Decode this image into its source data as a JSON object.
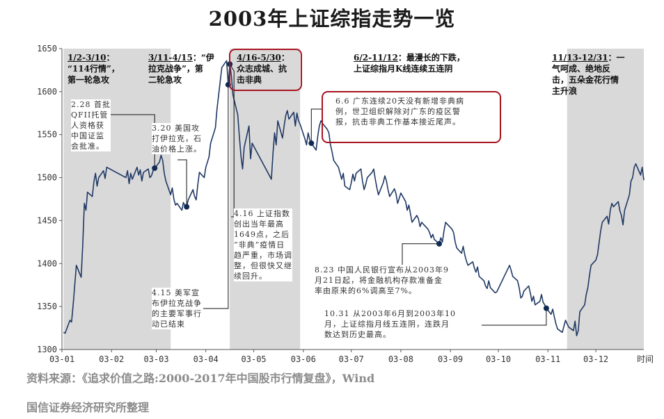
{
  "title": "2003年上证综指走势一览",
  "source": "资料来源：《追求价值之路:2000-2017年中国股市行情复盘》，Wind",
  "organizer": "国信证券经济研究所整理",
  "colors": {
    "line": "#1f3864",
    "shade": "#d9d9d9",
    "highlight": "#a8131f",
    "marker": "#0f2a52",
    "note_text": "#333333"
  },
  "periods": [
    {
      "id": "p1",
      "range": "1/2-3/10",
      "text": "1/2-3/10：\n“114行情”，\n第一轮急攻"
    },
    {
      "id": "p2",
      "range": "3/11-4/15",
      "text": "3/11-4/15：“伊\n拉克战争”，第\n二轮急攻"
    },
    {
      "id": "p3",
      "range": "4/16-5/30",
      "text": "4/16-5/30：\n众志成城、抗\n击非典"
    },
    {
      "id": "p4",
      "range": "6/2-11/12",
      "text": "6/2-11/12：最漫长的下跌，\n上证综指月K线连续五连阴"
    },
    {
      "id": "p5",
      "range": "11/13-12/31",
      "text": "11/13-12/31：一\n气呵成、绝地反\n击，五朵金花行情\n主升浪"
    }
  ],
  "annotations": [
    {
      "id": "a1",
      "text": "2.28 首批\nQFII托管\n人资格获\n中国证监\n会批准。"
    },
    {
      "id": "a2",
      "text": "3.20 美国攻\n打伊拉克，石\n油价格上涨。"
    },
    {
      "id": "a3",
      "text": "4.16 上证指数\n创出当年最高\n1649点，之后\n“非典”疫情日\n趋严重，市场调\n整，但很快又继\n续回升。"
    },
    {
      "id": "a4",
      "text": "4.15 美军宣\n布伊拉克战争\n的主要军事行\n动已结束"
    },
    {
      "id": "a5",
      "text": "6.6 广东连续20天没有新增非典病\n例，世卫组织解除对广东的疫区警\n报，抗击非典工作基本接近尾声。"
    },
    {
      "id": "a6",
      "text": "8.23 中国人民银行宣布从2003年9\n月21日起，将金融机构存款准备金\n率由原来的6%调高至7%。"
    },
    {
      "id": "a7",
      "text": "10.31 从2003年6月到2003年10\n月，上证综指月线五连阴，连跌月\n数达到历史最高。"
    }
  ],
  "chart_data": {
    "type": "line",
    "title": "2003年上证综指走势一览",
    "xlabel": "时间",
    "ylabel": "",
    "ylim": [
      1300,
      1650
    ],
    "yticks": [
      1300,
      1350,
      1400,
      1450,
      1500,
      1550,
      1600,
      1650
    ],
    "xticks": [
      "03-01",
      "03-02",
      "03-03",
      "03-04",
      "03-05",
      "03-06",
      "03-07",
      "03-08",
      "03-09",
      "03-10",
      "03-11",
      "03-12"
    ],
    "grid": false,
    "legend": "none",
    "shaded_periods": [
      [
        "2003-01-02",
        "2003-03-10"
      ],
      [
        "2003-04-16",
        "2003-05-30"
      ],
      [
        "2003-11-13",
        "2003-12-31"
      ]
    ],
    "series": [
      {
        "points": [
          [
            "2003-01-02",
            1320
          ],
          [
            "2003-01-03",
            1319
          ],
          [
            "2003-01-06",
            1334
          ],
          [
            "2003-01-07",
            1332
          ],
          [
            "2003-01-08",
            1352
          ],
          [
            "2003-01-09",
            1375
          ],
          [
            "2003-01-10",
            1398
          ],
          [
            "2003-01-13",
            1384
          ],
          [
            "2003-01-14",
            1422
          ],
          [
            "2003-01-15",
            1470
          ],
          [
            "2003-01-16",
            1462
          ],
          [
            "2003-01-17",
            1483
          ],
          [
            "2003-01-20",
            1478
          ],
          [
            "2003-01-21",
            1495
          ],
          [
            "2003-01-22",
            1505
          ],
          [
            "2003-01-23",
            1490
          ],
          [
            "2003-01-24",
            1500
          ],
          [
            "2003-01-27",
            1508
          ],
          [
            "2003-01-28",
            1499
          ],
          [
            "2003-01-29",
            1512
          ],
          [
            "2003-02-10",
            1500
          ],
          [
            "2003-02-11",
            1508
          ],
          [
            "2003-02-12",
            1493
          ],
          [
            "2003-02-13",
            1505
          ],
          [
            "2003-02-14",
            1498
          ],
          [
            "2003-02-17",
            1512
          ],
          [
            "2003-02-18",
            1503
          ],
          [
            "2003-02-19",
            1509
          ],
          [
            "2003-02-20",
            1496
          ],
          [
            "2003-02-21",
            1506
          ],
          [
            "2003-02-24",
            1510
          ],
          [
            "2003-02-25",
            1500
          ],
          [
            "2003-02-26",
            1502
          ],
          [
            "2003-02-27",
            1508
          ],
          [
            "2003-02-28",
            1511
          ],
          [
            "2003-03-03",
            1518
          ],
          [
            "2003-03-04",
            1526
          ],
          [
            "2003-03-05",
            1520
          ],
          [
            "2003-03-06",
            1505
          ],
          [
            "2003-03-07",
            1496
          ],
          [
            "2003-03-10",
            1480
          ],
          [
            "2003-03-11",
            1488
          ],
          [
            "2003-03-12",
            1475
          ],
          [
            "2003-03-13",
            1468
          ],
          [
            "2003-03-14",
            1470
          ],
          [
            "2003-03-17",
            1462
          ],
          [
            "2003-03-18",
            1471
          ],
          [
            "2003-03-19",
            1467
          ],
          [
            "2003-03-20",
            1466
          ],
          [
            "2003-03-21",
            1474
          ],
          [
            "2003-03-24",
            1486
          ],
          [
            "2003-03-25",
            1478
          ],
          [
            "2003-03-26",
            1474
          ],
          [
            "2003-03-27",
            1492
          ],
          [
            "2003-03-28",
            1506
          ],
          [
            "2003-03-31",
            1500
          ],
          [
            "2003-04-01",
            1512
          ],
          [
            "2003-04-02",
            1518
          ],
          [
            "2003-04-03",
            1524
          ],
          [
            "2003-04-04",
            1540
          ],
          [
            "2003-04-07",
            1558
          ],
          [
            "2003-04-08",
            1580
          ],
          [
            "2003-04-09",
            1596
          ],
          [
            "2003-04-10",
            1612
          ],
          [
            "2003-04-11",
            1628
          ],
          [
            "2003-04-14",
            1636
          ],
          [
            "2003-04-15",
            1608
          ],
          [
            "2003-04-16",
            1632
          ],
          [
            "2003-04-17",
            1618
          ],
          [
            "2003-04-18",
            1596
          ],
          [
            "2003-04-21",
            1573
          ],
          [
            "2003-04-22",
            1548
          ],
          [
            "2003-04-23",
            1525
          ],
          [
            "2003-04-24",
            1510
          ],
          [
            "2003-04-25",
            1535
          ],
          [
            "2003-04-28",
            1560
          ],
          [
            "2003-04-29",
            1522
          ],
          [
            "2003-04-30",
            1540
          ],
          [
            "2003-05-12",
            1498
          ],
          [
            "2003-05-13",
            1528
          ],
          [
            "2003-05-14",
            1552
          ],
          [
            "2003-05-15",
            1538
          ],
          [
            "2003-05-16",
            1566
          ],
          [
            "2003-05-19",
            1546
          ],
          [
            "2003-05-20",
            1560
          ],
          [
            "2003-05-21",
            1572
          ],
          [
            "2003-05-22",
            1578
          ],
          [
            "2003-05-23",
            1568
          ],
          [
            "2003-05-26",
            1576
          ],
          [
            "2003-05-27",
            1560
          ],
          [
            "2003-05-28",
            1575
          ],
          [
            "2003-05-29",
            1566
          ],
          [
            "2003-05-30",
            1562
          ],
          [
            "2003-06-02",
            1545
          ],
          [
            "2003-06-03",
            1538
          ],
          [
            "2003-06-04",
            1552
          ],
          [
            "2003-06-05",
            1544
          ],
          [
            "2003-06-06",
            1540
          ],
          [
            "2003-06-09",
            1532
          ],
          [
            "2003-06-10",
            1548
          ],
          [
            "2003-06-11",
            1560
          ],
          [
            "2003-06-12",
            1566
          ],
          [
            "2003-06-13",
            1563
          ],
          [
            "2003-06-16",
            1556
          ],
          [
            "2003-06-17",
            1552
          ],
          [
            "2003-06-18",
            1538
          ],
          [
            "2003-06-19",
            1530
          ],
          [
            "2003-06-20",
            1520
          ],
          [
            "2003-06-23",
            1512
          ],
          [
            "2003-06-24",
            1505
          ],
          [
            "2003-06-25",
            1498
          ],
          [
            "2003-06-26",
            1505
          ],
          [
            "2003-06-27",
            1490
          ],
          [
            "2003-06-30",
            1486
          ],
          [
            "2003-07-01",
            1494
          ],
          [
            "2003-07-02",
            1504
          ],
          [
            "2003-07-03",
            1496
          ],
          [
            "2003-07-04",
            1505
          ],
          [
            "2003-07-07",
            1510
          ],
          [
            "2003-07-08",
            1496
          ],
          [
            "2003-07-09",
            1486
          ],
          [
            "2003-07-10",
            1492
          ],
          [
            "2003-07-11",
            1500
          ],
          [
            "2003-07-14",
            1506
          ],
          [
            "2003-07-15",
            1510
          ],
          [
            "2003-07-16",
            1498
          ],
          [
            "2003-07-17",
            1488
          ],
          [
            "2003-07-18",
            1480
          ],
          [
            "2003-07-21",
            1494
          ],
          [
            "2003-07-22",
            1502
          ],
          [
            "2003-07-23",
            1496
          ],
          [
            "2003-07-24",
            1486
          ],
          [
            "2003-07-25",
            1478
          ],
          [
            "2003-07-28",
            1487
          ],
          [
            "2003-07-29",
            1481
          ],
          [
            "2003-07-30",
            1470
          ],
          [
            "2003-07-31",
            1476
          ],
          [
            "2003-08-01",
            1482
          ],
          [
            "2003-08-04",
            1472
          ],
          [
            "2003-08-05",
            1462
          ],
          [
            "2003-08-06",
            1468
          ],
          [
            "2003-08-07",
            1458
          ],
          [
            "2003-08-08",
            1448
          ],
          [
            "2003-08-11",
            1456
          ],
          [
            "2003-08-12",
            1452
          ],
          [
            "2003-08-13",
            1443
          ],
          [
            "2003-08-14",
            1448
          ],
          [
            "2003-08-15",
            1446
          ],
          [
            "2003-08-18",
            1440
          ],
          [
            "2003-08-19",
            1436
          ],
          [
            "2003-08-20",
            1430
          ],
          [
            "2003-08-21",
            1434
          ],
          [
            "2003-08-22",
            1428
          ],
          [
            "2003-08-25",
            1423
          ],
          [
            "2003-08-26",
            1430
          ],
          [
            "2003-08-27",
            1425
          ],
          [
            "2003-08-28",
            1438
          ],
          [
            "2003-08-29",
            1448
          ],
          [
            "2003-09-01",
            1442
          ],
          [
            "2003-09-02",
            1440
          ],
          [
            "2003-09-03",
            1436
          ],
          [
            "2003-09-04",
            1425
          ],
          [
            "2003-09-05",
            1418
          ],
          [
            "2003-09-08",
            1412
          ],
          [
            "2003-09-09",
            1420
          ],
          [
            "2003-09-10",
            1410
          ],
          [
            "2003-09-11",
            1403
          ],
          [
            "2003-09-12",
            1398
          ],
          [
            "2003-09-15",
            1402
          ],
          [
            "2003-09-16",
            1395
          ],
          [
            "2003-09-17",
            1390
          ],
          [
            "2003-09-18",
            1396
          ],
          [
            "2003-09-19",
            1385
          ],
          [
            "2003-09-22",
            1380
          ],
          [
            "2003-09-23",
            1374
          ],
          [
            "2003-09-24",
            1371
          ],
          [
            "2003-09-25",
            1380
          ],
          [
            "2003-09-26",
            1372
          ],
          [
            "2003-09-29",
            1366
          ],
          [
            "2003-09-30",
            1367
          ],
          [
            "2003-10-08",
            1398
          ],
          [
            "2003-10-09",
            1392
          ],
          [
            "2003-10-10",
            1385
          ],
          [
            "2003-10-13",
            1380
          ],
          [
            "2003-10-14",
            1372
          ],
          [
            "2003-10-15",
            1360
          ],
          [
            "2003-10-16",
            1362
          ],
          [
            "2003-10-17",
            1368
          ],
          [
            "2003-10-20",
            1374
          ],
          [
            "2003-10-21",
            1366
          ],
          [
            "2003-10-22",
            1356
          ],
          [
            "2003-10-23",
            1362
          ],
          [
            "2003-10-24",
            1352
          ],
          [
            "2003-10-27",
            1356
          ],
          [
            "2003-10-28",
            1364
          ],
          [
            "2003-10-29",
            1355
          ],
          [
            "2003-10-30",
            1352
          ],
          [
            "2003-10-31",
            1348
          ],
          [
            "2003-11-03",
            1341
          ],
          [
            "2003-11-04",
            1347
          ],
          [
            "2003-11-05",
            1338
          ],
          [
            "2003-11-06",
            1330
          ],
          [
            "2003-11-07",
            1324
          ],
          [
            "2003-11-10",
            1320
          ],
          [
            "2003-11-11",
            1327
          ],
          [
            "2003-11-12",
            1334
          ],
          [
            "2003-11-13",
            1330
          ],
          [
            "2003-11-14",
            1326
          ],
          [
            "2003-11-17",
            1322
          ],
          [
            "2003-11-18",
            1333
          ],
          [
            "2003-11-19",
            1316
          ],
          [
            "2003-11-20",
            1322
          ],
          [
            "2003-11-21",
            1344
          ],
          [
            "2003-11-24",
            1352
          ],
          [
            "2003-11-25",
            1364
          ],
          [
            "2003-11-26",
            1372
          ],
          [
            "2003-11-27",
            1386
          ],
          [
            "2003-11-28",
            1398
          ],
          [
            "2003-12-01",
            1404
          ],
          [
            "2003-12-02",
            1410
          ],
          [
            "2003-12-03",
            1424
          ],
          [
            "2003-12-04",
            1438
          ],
          [
            "2003-12-05",
            1448
          ],
          [
            "2003-12-08",
            1455
          ],
          [
            "2003-12-09",
            1446
          ],
          [
            "2003-12-10",
            1462
          ],
          [
            "2003-12-11",
            1470
          ],
          [
            "2003-12-12",
            1466
          ],
          [
            "2003-12-15",
            1472
          ],
          [
            "2003-12-16",
            1462
          ],
          [
            "2003-12-17",
            1456
          ],
          [
            "2003-12-18",
            1445
          ],
          [
            "2003-12-19",
            1462
          ],
          [
            "2003-12-22",
            1480
          ],
          [
            "2003-12-23",
            1496
          ],
          [
            "2003-12-24",
            1500
          ],
          [
            "2003-12-25",
            1512
          ],
          [
            "2003-12-26",
            1516
          ],
          [
            "2003-12-29",
            1503
          ],
          [
            "2003-12-30",
            1512
          ],
          [
            "2003-12-31",
            1497
          ]
        ]
      }
    ],
    "markers": [
      {
        "date": "2003-02-28",
        "value": 1511
      },
      {
        "date": "2003-03-20",
        "value": 1466
      },
      {
        "date": "2003-04-15",
        "value": 1608
      },
      {
        "date": "2003-04-16",
        "value": 1632
      },
      {
        "date": "2003-06-06",
        "value": 1540
      },
      {
        "date": "2003-08-25",
        "value": 1423
      },
      {
        "date": "2003-10-31",
        "value": 1348
      }
    ]
  }
}
